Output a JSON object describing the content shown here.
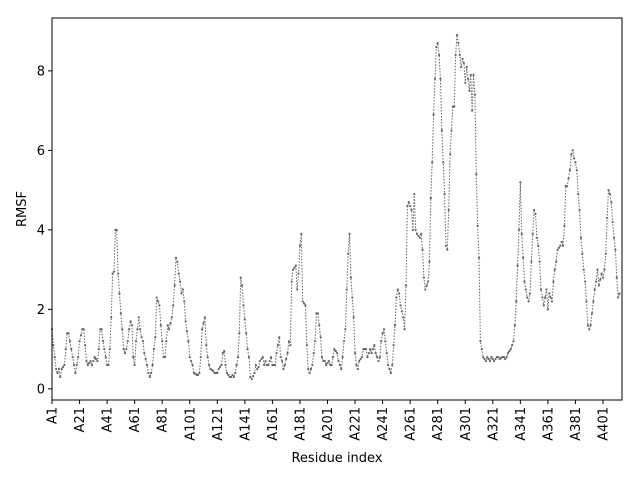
{
  "chart_data": {
    "type": "line",
    "xlabel": "Residue index",
    "ylabel": "RMSF",
    "color": "#666666",
    "ylim": [
      -0.28,
      9.33
    ],
    "yticks": [
      0,
      2,
      4,
      6,
      8
    ],
    "categories": [
      "A1",
      null,
      null,
      null,
      null,
      null,
      null,
      null,
      null,
      null,
      null,
      null,
      null,
      null,
      null,
      null,
      null,
      null,
      null,
      null,
      "A21",
      null,
      null,
      null,
      null,
      null,
      null,
      null,
      null,
      null,
      null,
      null,
      null,
      null,
      null,
      null,
      null,
      null,
      null,
      null,
      "A41",
      null,
      null,
      null,
      null,
      null,
      null,
      null,
      null,
      null,
      null,
      null,
      null,
      null,
      null,
      null,
      null,
      null,
      null,
      null,
      "A61",
      null,
      null,
      null,
      null,
      null,
      null,
      null,
      null,
      null,
      null,
      null,
      null,
      null,
      null,
      null,
      null,
      null,
      null,
      null,
      "A81",
      null,
      null,
      null,
      null,
      null,
      null,
      null,
      null,
      null,
      null,
      null,
      null,
      null,
      null,
      null,
      null,
      null,
      null,
      null,
      "A101",
      null,
      null,
      null,
      null,
      null,
      null,
      null,
      null,
      null,
      null,
      null,
      null,
      null,
      null,
      null,
      null,
      null,
      null,
      null,
      "A121",
      null,
      null,
      null,
      null,
      null,
      null,
      null,
      null,
      null,
      null,
      null,
      null,
      null,
      null,
      null,
      null,
      null,
      null,
      null,
      "A141",
      null,
      null,
      null,
      null,
      null,
      null,
      null,
      null,
      null,
      null,
      null,
      null,
      null,
      null,
      null,
      null,
      null,
      null,
      null,
      "A161",
      null,
      null,
      null,
      null,
      null,
      null,
      null,
      null,
      null,
      null,
      null,
      null,
      null,
      null,
      null,
      null,
      null,
      null,
      null,
      "A181",
      null,
      null,
      null,
      null,
      null,
      null,
      null,
      null,
      null,
      null,
      null,
      null,
      null,
      null,
      null,
      null,
      null,
      null,
      null,
      "A201",
      null,
      null,
      null,
      null,
      null,
      null,
      null,
      null,
      null,
      null,
      null,
      null,
      null,
      null,
      null,
      null,
      null,
      null,
      null,
      "A221",
      null,
      null,
      null,
      null,
      null,
      null,
      null,
      null,
      null,
      null,
      null,
      null,
      null,
      null,
      null,
      null,
      null,
      null,
      null,
      "A241",
      null,
      null,
      null,
      null,
      null,
      null,
      null,
      null,
      null,
      null,
      null,
      null,
      null,
      null,
      null,
      null,
      null,
      null,
      null,
      "A261",
      null,
      null,
      null,
      null,
      null,
      null,
      null,
      null,
      null,
      null,
      null,
      null,
      null,
      null,
      null,
      null,
      null,
      null,
      null,
      "A281",
      null,
      null,
      null,
      null,
      null,
      null,
      null,
      null,
      null,
      null,
      null,
      null,
      null,
      null,
      null,
      null,
      null,
      null,
      null,
      "A301",
      null,
      null,
      null,
      null,
      null,
      null,
      null,
      null,
      null,
      null,
      null,
      null,
      null,
      null,
      null,
      null,
      null,
      null,
      null,
      "A321",
      null,
      null,
      null,
      null,
      null,
      null,
      null,
      null,
      null,
      null,
      null,
      null,
      null,
      null,
      null,
      null,
      null,
      null,
      null,
      "A341",
      null,
      null,
      null,
      null,
      null,
      null,
      null,
      null,
      null,
      null,
      null,
      null,
      null,
      null,
      null,
      null,
      null,
      null,
      null,
      "A361",
      null,
      null,
      null,
      null,
      null,
      null,
      null,
      null,
      null,
      null,
      null,
      null,
      null,
      null,
      null,
      null,
      null,
      null,
      null,
      "A381",
      null,
      null,
      null,
      null,
      null,
      null,
      null,
      null,
      null,
      null,
      null,
      null,
      null,
      null,
      null,
      null,
      null,
      null,
      null,
      "A401",
      null,
      null,
      null,
      null,
      null,
      null,
      null,
      null,
      null,
      null,
      null,
      null
    ],
    "values": [
      1.5,
      1.1,
      0.8,
      0.5,
      0.4,
      0.5,
      0.3,
      0.5,
      0.55,
      0.6,
      1.0,
      1.4,
      1.4,
      1.2,
      1.0,
      0.8,
      0.6,
      0.4,
      0.6,
      0.8,
      1.2,
      1.35,
      1.5,
      1.5,
      1.1,
      0.7,
      0.6,
      0.65,
      0.7,
      0.6,
      0.7,
      0.8,
      0.75,
      0.7,
      1.0,
      1.5,
      1.5,
      1.2,
      1.0,
      0.8,
      0.6,
      0.6,
      1.0,
      1.8,
      2.9,
      2.95,
      4.0,
      4.0,
      2.9,
      2.4,
      1.9,
      1.5,
      1.0,
      0.9,
      1.0,
      1.2,
      1.5,
      1.7,
      1.6,
      0.8,
      0.6,
      1.2,
      1.5,
      1.8,
      1.5,
      1.3,
      1.2,
      0.9,
      0.75,
      0.6,
      0.4,
      0.3,
      0.4,
      0.6,
      1.0,
      1.3,
      2.3,
      2.2,
      2.1,
      1.6,
      1.2,
      0.8,
      0.8,
      1.2,
      1.6,
      1.5,
      1.65,
      1.8,
      2.1,
      2.6,
      3.3,
      3.2,
      2.9,
      2.7,
      2.4,
      2.5,
      2.2,
      1.7,
      1.45,
      1.2,
      0.8,
      0.7,
      0.6,
      0.4,
      0.38,
      0.35,
      0.35,
      0.4,
      0.8,
      1.5,
      1.65,
      1.8,
      1.1,
      0.8,
      0.6,
      0.5,
      0.48,
      0.45,
      0.4,
      0.4,
      0.4,
      0.5,
      0.55,
      0.6,
      0.9,
      0.95,
      0.6,
      0.4,
      0.35,
      0.3,
      0.3,
      0.35,
      0.3,
      0.4,
      0.6,
      0.8,
      1.4,
      2.8,
      2.6,
      2.1,
      1.75,
      1.4,
      1.0,
      0.8,
      0.3,
      0.25,
      0.32,
      0.4,
      0.6,
      0.5,
      0.55,
      0.7,
      0.75,
      0.8,
      0.6,
      0.7,
      0.6,
      0.6,
      0.7,
      0.8,
      0.6,
      0.6,
      0.6,
      0.9,
      1.1,
      1.3,
      0.8,
      0.7,
      0.5,
      0.6,
      0.75,
      0.9,
      1.2,
      1.1,
      2.7,
      3.0,
      3.05,
      3.1,
      2.5,
      2.9,
      3.6,
      3.9,
      2.2,
      2.15,
      2.1,
      1.1,
      0.5,
      0.4,
      0.5,
      0.6,
      0.9,
      1.2,
      1.9,
      1.9,
      1.6,
      1.3,
      0.8,
      0.7,
      0.7,
      0.6,
      0.65,
      0.7,
      0.6,
      0.6,
      0.8,
      1.0,
      0.95,
      0.9,
      0.7,
      0.6,
      0.5,
      0.8,
      1.2,
      1.5,
      2.5,
      3.4,
      3.9,
      2.8,
      2.3,
      1.8,
      0.9,
      0.6,
      0.5,
      0.7,
      0.75,
      0.8,
      1.0,
      1.0,
      1.0,
      0.8,
      0.9,
      1.0,
      0.9,
      1.0,
      1.1,
      0.9,
      0.8,
      0.7,
      0.8,
      1.2,
      1.4,
      1.5,
      1.2,
      0.9,
      0.6,
      0.5,
      0.4,
      0.6,
      1.1,
      1.6,
      2.3,
      2.5,
      2.4,
      2.1,
      1.95,
      1.8,
      1.5,
      2.6,
      4.6,
      4.7,
      4.6,
      4.5,
      4.0,
      4.9,
      4.0,
      3.9,
      3.85,
      3.8,
      3.9,
      3.5,
      2.8,
      2.5,
      2.6,
      2.7,
      3.2,
      4.8,
      5.7,
      6.9,
      7.8,
      8.6,
      8.7,
      8.4,
      7.8,
      6.5,
      5.7,
      4.9,
      3.6,
      3.5,
      4.5,
      5.9,
      6.5,
      7.1,
      7.1,
      8.4,
      8.9,
      8.7,
      8.4,
      8.1,
      8.3,
      8.2,
      7.7,
      8.1,
      7.8,
      7.5,
      7.9,
      7.0,
      7.9,
      7.4,
      5.4,
      4.1,
      3.3,
      1.2,
      1.0,
      0.8,
      0.75,
      0.7,
      0.8,
      0.75,
      0.7,
      0.8,
      0.75,
      0.7,
      0.75,
      0.8,
      0.8,
      0.75,
      0.78,
      0.8,
      0.8,
      0.75,
      0.8,
      0.9,
      0.95,
      1.0,
      1.1,
      1.2,
      1.6,
      2.2,
      3.1,
      4.0,
      5.2,
      3.9,
      3.3,
      2.7,
      2.5,
      2.3,
      2.2,
      2.4,
      3.2,
      3.9,
      4.5,
      4.4,
      3.8,
      3.6,
      3.2,
      2.5,
      2.3,
      2.1,
      2.3,
      2.5,
      2.0,
      2.4,
      2.3,
      2.2,
      2.7,
      3.0,
      3.2,
      3.5,
      3.55,
      3.6,
      3.7,
      3.6,
      4.1,
      5.1,
      5.1,
      5.3,
      5.5,
      5.9,
      6.0,
      5.8,
      5.7,
      5.5,
      4.9,
      4.5,
      3.8,
      3.4,
      3.0,
      2.7,
      2.2,
      1.6,
      1.5,
      1.6,
      1.9,
      2.2,
      2.5,
      2.7,
      3.0,
      2.6,
      2.75,
      2.9,
      2.8,
      3.0,
      3.4,
      4.3,
      5.0,
      4.9,
      4.7,
      4.2,
      3.8,
      3.5,
      2.8,
      2.3,
      2.4
    ]
  }
}
